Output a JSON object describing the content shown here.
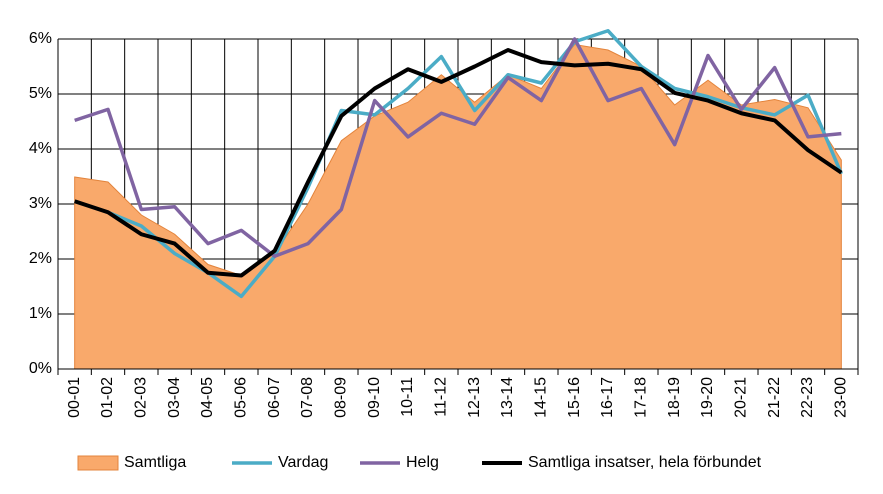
{
  "chart_data": {
    "type": "line",
    "categories": [
      "00-01",
      "01-02",
      "02-03",
      "03-04",
      "04-05",
      "05-06",
      "06-07",
      "07-08",
      "08-09",
      "09-10",
      "10-11",
      "11-12",
      "12-13",
      "13-14",
      "14-15",
      "15-16",
      "16-17",
      "17-18",
      "18-19",
      "19-20",
      "20-21",
      "21-22",
      "22-23",
      "23-00"
    ],
    "series": [
      {
        "name": "Samtliga",
        "kind": "area",
        "color": "#f9a96b",
        "stroke": "#e3843c",
        "values": [
          3.49,
          3.4,
          2.8,
          2.45,
          1.9,
          1.7,
          2.1,
          3.0,
          4.15,
          4.6,
          4.85,
          5.35,
          4.85,
          5.35,
          5.1,
          5.9,
          5.8,
          5.5,
          4.8,
          5.25,
          4.8,
          4.9,
          4.75,
          3.8
        ]
      },
      {
        "name": "Vardag",
        "kind": "line",
        "color": "#4bacc6",
        "values": [
          3.05,
          2.85,
          2.6,
          2.1,
          1.75,
          1.32,
          2.05,
          3.3,
          4.7,
          4.62,
          5.1,
          5.68,
          4.7,
          5.35,
          5.2,
          5.95,
          6.15,
          5.5,
          5.1,
          4.95,
          4.75,
          4.62,
          4.98,
          3.55
        ]
      },
      {
        "name": "Helg",
        "kind": "line",
        "color": "#8064a2",
        "values": [
          4.52,
          4.72,
          2.9,
          2.95,
          2.28,
          2.52,
          2.05,
          2.28,
          2.9,
          4.88,
          4.22,
          4.65,
          4.45,
          5.3,
          4.88,
          6.0,
          4.88,
          5.1,
          4.08,
          5.7,
          4.72,
          5.48,
          4.22,
          4.28
        ]
      },
      {
        "name": "Samtliga insatser, hela förbundet",
        "kind": "line",
        "color": "#000000",
        "values": [
          3.05,
          2.85,
          2.45,
          2.28,
          1.75,
          1.7,
          2.15,
          3.4,
          4.6,
          5.1,
          5.45,
          5.22,
          5.5,
          5.8,
          5.58,
          5.52,
          5.55,
          5.45,
          5.02,
          4.88,
          4.65,
          4.52,
          3.98,
          3.57
        ]
      }
    ],
    "ylim": [
      0,
      6
    ],
    "yticks": [
      {
        "value": 0,
        "label": "0%"
      },
      {
        "value": 1,
        "label": "1%"
      },
      {
        "value": 2,
        "label": "2%"
      },
      {
        "value": 3,
        "label": "3%"
      },
      {
        "value": 4,
        "label": "4%"
      },
      {
        "value": 5,
        "label": "5%"
      },
      {
        "value": 6,
        "label": "6%"
      }
    ],
    "grid": true,
    "legend": "bottom"
  }
}
